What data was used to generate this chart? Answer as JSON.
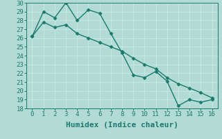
{
  "xlabel": "Humidex (Indice chaleur)",
  "x": [
    0,
    1,
    2,
    3,
    4,
    5,
    6,
    7,
    8,
    9,
    10,
    11,
    12,
    13,
    14,
    15,
    16
  ],
  "line1": [
    26.2,
    29.0,
    28.3,
    30.0,
    28.0,
    29.2,
    28.8,
    26.5,
    24.3,
    21.8,
    21.5,
    22.2,
    21.1,
    18.3,
    19.0,
    18.7,
    19.0
  ],
  "line2": [
    26.2,
    27.8,
    27.2,
    27.5,
    26.5,
    26.0,
    25.5,
    25.0,
    24.5,
    23.7,
    23.0,
    22.5,
    21.5,
    20.8,
    20.3,
    19.8,
    19.2
  ],
  "line_color": "#1a7a6e",
  "bg_color": "#b2dbd6",
  "grid_color": "#c8e8e5",
  "ylim": [
    18,
    30
  ],
  "yticks": [
    18,
    19,
    20,
    21,
    22,
    23,
    24,
    25,
    26,
    27,
    28,
    29,
    30
  ],
  "xticks": [
    0,
    1,
    2,
    3,
    4,
    5,
    6,
    7,
    8,
    9,
    10,
    11,
    12,
    13,
    14,
    15,
    16
  ],
  "markersize": 2.5,
  "linewidth": 1.0,
  "xlabel_fontsize": 8,
  "tick_fontsize": 6.5
}
